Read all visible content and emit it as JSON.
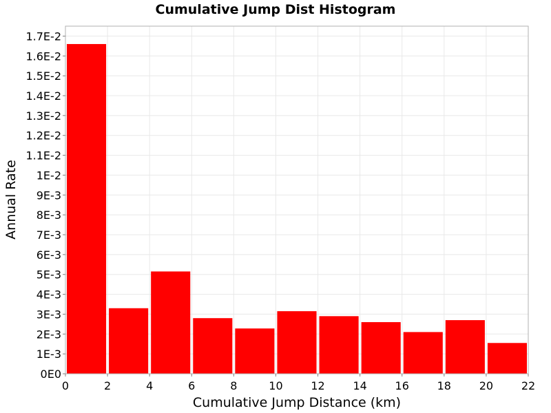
{
  "chart_data": {
    "type": "bar",
    "title": "Cumulative Jump Dist Histogram",
    "xlabel": "Cumulative Jump Distance (km)",
    "ylabel": "Annual Rate",
    "xlim": [
      0,
      22
    ],
    "ylim": [
      0,
      0.0175
    ],
    "x_ticks": [
      0,
      2,
      4,
      6,
      8,
      10,
      12,
      14,
      16,
      18,
      20,
      22
    ],
    "x_tick_labels": [
      "0",
      "2",
      "4",
      "6",
      "8",
      "10",
      "12",
      "14",
      "16",
      "18",
      "20",
      "22"
    ],
    "y_ticks": [
      0,
      0.001,
      0.002,
      0.003,
      0.004,
      0.005,
      0.006,
      0.007,
      0.008,
      0.009,
      0.01,
      0.011,
      0.012,
      0.013,
      0.014,
      0.015,
      0.016,
      0.017
    ],
    "y_tick_labels": [
      "0E0",
      "1E-3",
      "2E-3",
      "3E-3",
      "4E-3",
      "5E-3",
      "6E-3",
      "7E-3",
      "8E-3",
      "9E-3",
      "1E-2",
      "1.1E-2",
      "1.2E-2",
      "1.3E-2",
      "1.4E-2",
      "1.5E-2",
      "1.6E-2",
      "1.7E-2"
    ],
    "grid": true,
    "bar_color": "#ff0000",
    "bins": [
      {
        "x_start": 0,
        "x_end": 2,
        "value": 0.0166
      },
      {
        "x_start": 2,
        "x_end": 4,
        "value": 0.0033
      },
      {
        "x_start": 4,
        "x_end": 6,
        "value": 0.00515
      },
      {
        "x_start": 6,
        "x_end": 8,
        "value": 0.0028
      },
      {
        "x_start": 8,
        "x_end": 10,
        "value": 0.00228
      },
      {
        "x_start": 10,
        "x_end": 12,
        "value": 0.00315
      },
      {
        "x_start": 12,
        "x_end": 14,
        "value": 0.0029
      },
      {
        "x_start": 14,
        "x_end": 16,
        "value": 0.0026
      },
      {
        "x_start": 16,
        "x_end": 18,
        "value": 0.0021
      },
      {
        "x_start": 18,
        "x_end": 20,
        "value": 0.0027
      },
      {
        "x_start": 20,
        "x_end": 22,
        "value": 0.00155
      }
    ]
  }
}
